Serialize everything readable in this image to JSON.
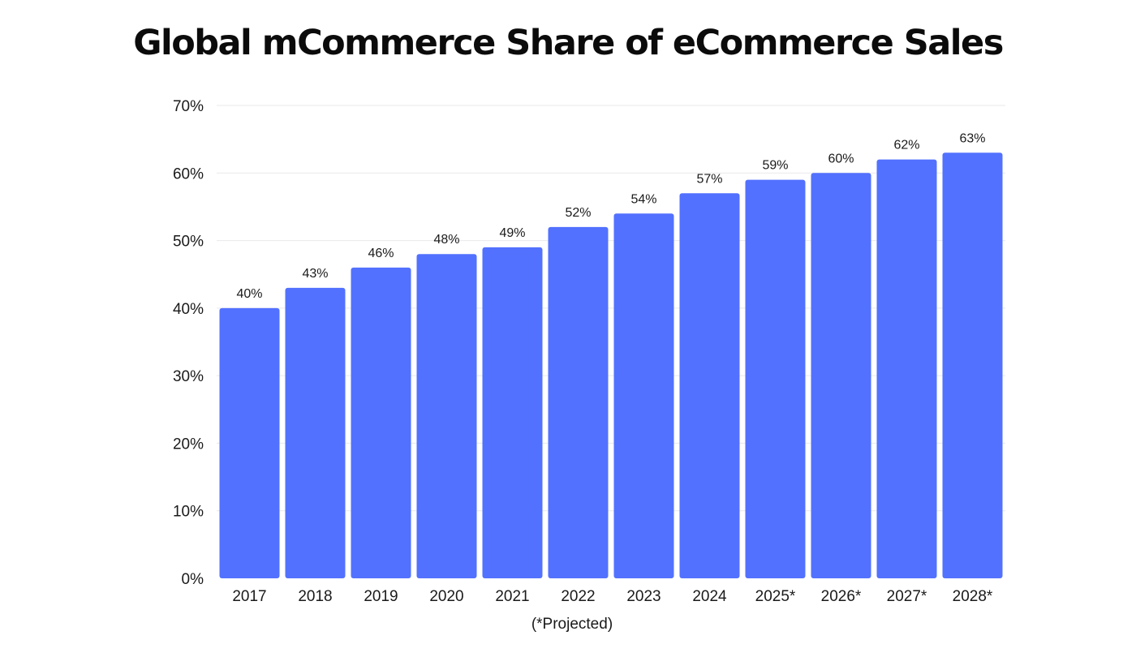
{
  "chart_data": {
    "type": "bar",
    "title": "Global mCommerce Share of eCommerce Sales",
    "xlabel": "",
    "ylabel": "",
    "note": "(*Projected)",
    "categories": [
      "2017",
      "2018",
      "2019",
      "2020",
      "2021",
      "2022",
      "2023",
      "2024",
      "2025*",
      "2026*",
      "2027*",
      "2028*"
    ],
    "values": [
      40,
      43,
      46,
      48,
      49,
      52,
      54,
      57,
      59,
      60,
      62,
      63
    ],
    "data_labels": [
      "40%",
      "43%",
      "46%",
      "48%",
      "49%",
      "52%",
      "54%",
      "57%",
      "59%",
      "60%",
      "62%",
      "63%"
    ],
    "ylim": [
      0,
      70
    ],
    "yticks": [
      0,
      10,
      20,
      30,
      40,
      50,
      60,
      70
    ],
    "ytick_labels": [
      "0%",
      "10%",
      "20%",
      "30%",
      "40%",
      "50%",
      "60%",
      "70%"
    ],
    "grid": true,
    "legend": "none",
    "bar_color": "#5271ff"
  }
}
